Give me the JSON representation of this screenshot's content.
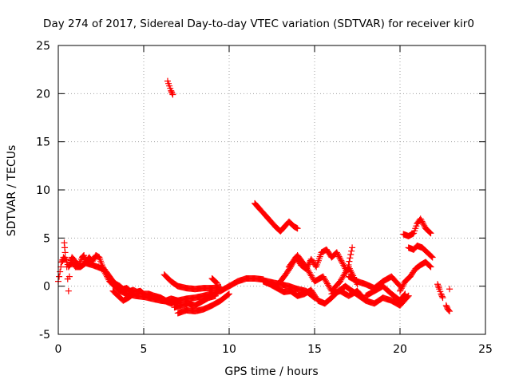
{
  "chart_data": {
    "type": "scatter",
    "title": "Day 274 of 2017, Sidereal Day-to-day VTEC variation (SDTVAR) for receiver kir0",
    "xlabel": "GPS time / hours",
    "ylabel": "SDTVAR / TECUs",
    "xlim": [
      0,
      25
    ],
    "ylim": [
      -5,
      25
    ],
    "xticks": [
      "0",
      "5",
      "10",
      "15",
      "20",
      "25"
    ],
    "yticks": [
      "-5",
      "0",
      "5",
      "10",
      "15",
      "20",
      "25"
    ],
    "grid": true,
    "marker": "+",
    "series": [
      {
        "name": "SDTVAR",
        "color": "#ff0000",
        "segments": [
          {
            "x": [
              0.0,
              0.1,
              0.2,
              0.3,
              0.35,
              0.4,
              0.5,
              0.6,
              0.7,
              0.8,
              0.9,
              1.0,
              1.2,
              1.4,
              1.5,
              1.6,
              1.8,
              2.0,
              2.2,
              2.4,
              2.6,
              2.8,
              3.0,
              3.2,
              3.4,
              3.6,
              3.8,
              4.0,
              4.2,
              4.4,
              4.6,
              4.8,
              5.0,
              5.3,
              5.6,
              6.0,
              6.3,
              6.6,
              7.0
            ],
            "y": [
              0.5,
              1.5,
              2.5,
              3.0,
              4.5,
              3.5,
              2.0,
              -0.5,
              2.5,
              3.0,
              2.8,
              2.5,
              2.2,
              3.0,
              3.2,
              2.5,
              3.0,
              2.6,
              3.2,
              3.0,
              2.0,
              1.5,
              1.0,
              0.5,
              0.2,
              0,
              -0.3,
              -0.2,
              -0.5,
              -0.4,
              -0.6,
              -0.5,
              -0.8,
              -0.8,
              -1.0,
              -1.2,
              -1.5,
              -1.3,
              -1.5
            ]
          },
          {
            "x": [
              0.2,
              0.4,
              0.6,
              0.8,
              1.0,
              1.3,
              1.6,
              2.0,
              2.3,
              2.6,
              3.0,
              3.3,
              3.6,
              4.0,
              4.5,
              5.0,
              5.5,
              6.0,
              6.5,
              7.0
            ],
            "y": [
              2.5,
              3.0,
              2.0,
              2.5,
              2.0,
              2.0,
              2.4,
              2.2,
              2.0,
              1.8,
              0.5,
              0,
              -0.5,
              -0.8,
              -1.0,
              -1.1,
              -1.3,
              -1.5,
              -1.6,
              -1.8
            ]
          },
          {
            "x": [
              3.2,
              3.5,
              3.8,
              4.1,
              4.4
            ],
            "y": [
              -0.5,
              -1.0,
              -1.5,
              -1.2,
              -0.8
            ]
          },
          {
            "x": [
              6.4,
              6.5,
              6.6,
              6.7
            ],
            "y": [
              21.3,
              20.8,
              20.3,
              19.9
            ]
          },
          {
            "x": [
              6.2,
              6.6,
              7.0,
              7.5,
              8.0,
              8.5,
              9.0,
              9.5
            ],
            "y": [
              1.2,
              0.5,
              0,
              -0.2,
              -0.3,
              -0.2,
              -0.2,
              -0.1
            ]
          },
          {
            "x": [
              6.2,
              6.6,
              7.0,
              7.5,
              8.0,
              8.5,
              9.0,
              9.5,
              10.0,
              10.5,
              11.0,
              11.5,
              12.0
            ],
            "y": [
              -1.5,
              -1.8,
              -1.5,
              -1.3,
              -1.2,
              -1.0,
              -0.8,
              -0.5,
              0,
              0.5,
              0.8,
              0.8,
              0.7
            ]
          },
          {
            "x": [
              7.0,
              7.5,
              8.0,
              8.5,
              9.0,
              9.5,
              10.0
            ],
            "y": [
              -2.8,
              -2.5,
              -2.6,
              -2.4,
              -2.0,
              -1.5,
              -0.8
            ]
          },
          {
            "x": [
              6.8,
              7.2,
              7.6,
              8.0,
              8.4,
              8.8,
              9.2
            ],
            "y": [
              -2.2,
              -2.0,
              -1.8,
              -2.0,
              -1.6,
              -1.2,
              -1.0
            ]
          },
          {
            "x": [
              9.0,
              9.3
            ],
            "y": [
              0.8,
              0.3
            ]
          },
          {
            "x": [
              11.5,
              11.8,
              12.1,
              12.4,
              12.7,
              13.0,
              13.3,
              13.5,
              13.8,
              14.0
            ],
            "y": [
              8.6,
              8.0,
              7.4,
              6.8,
              6.2,
              5.7,
              6.3,
              6.7,
              6.2,
              6.0
            ]
          },
          {
            "x": [
              12.0,
              12.5,
              13.0,
              13.5,
              14.0,
              14.5,
              15.0
            ],
            "y": [
              0.6,
              0.4,
              0.2,
              0,
              -0.3,
              -0.5,
              -1.2
            ]
          },
          {
            "x": [
              12.0,
              12.4,
              12.8,
              13.2,
              13.6,
              14.0,
              14.4,
              14.8,
              15.2,
              15.6,
              16.0,
              16.4,
              16.8,
              17.2,
              17.6,
              18.0
            ],
            "y": [
              0.5,
              0.2,
              -0.2,
              -0.6,
              -0.5,
              -1.0,
              -0.8,
              -0.4,
              -1.5,
              -1.8,
              -1.2,
              -0.5,
              0,
              -0.5,
              -1.0,
              -1.5
            ]
          },
          {
            "x": [
              13.0,
              13.3,
              13.6,
              13.9,
              14.2,
              14.5,
              14.8,
              15.1,
              15.4,
              15.7,
              16.0,
              16.3,
              16.6,
              16.9,
              17.2
            ],
            "y": [
              0.5,
              1.2,
              2.0,
              3.0,
              2.2,
              1.8,
              2.8,
              2.0,
              3.5,
              3.8,
              3.0,
              3.5,
              2.5,
              1.5,
              4.0
            ]
          },
          {
            "x": [
              13.5,
              14.0,
              14.5,
              15.0,
              15.5,
              16.0,
              16.5,
              17.0,
              17.5
            ],
            "y": [
              2.0,
              3.2,
              2.0,
              0.5,
              1.0,
              -0.5,
              0.5,
              2.0,
              0.2
            ]
          },
          {
            "x": [
              16.0,
              16.5,
              17.0,
              17.5,
              18.0,
              18.5,
              19.0,
              19.5,
              20.0,
              20.5
            ],
            "y": [
              -0.8,
              -0.5,
              -1.0,
              -0.5,
              -1.5,
              -1.8,
              -1.2,
              -1.5,
              -2.0,
              -1.0
            ]
          },
          {
            "x": [
              17.0,
              17.5,
              18.0,
              18.5,
              19.0,
              19.5,
              20.0
            ],
            "y": [
              1.0,
              0.5,
              0.2,
              -0.2,
              0.5,
              1.0,
              0
            ]
          },
          {
            "x": [
              18.0,
              18.5,
              19.0,
              19.5,
              20.0,
              20.3
            ],
            "y": [
              -1.0,
              -0.5,
              0,
              -0.8,
              -1.5,
              -0.8
            ]
          },
          {
            "x": [
              20.0,
              20.3,
              20.6,
              20.9,
              21.2,
              21.5,
              21.8
            ],
            "y": [
              -0.5,
              0.5,
              1.0,
              1.8,
              2.2,
              2.5,
              2.0
            ]
          },
          {
            "x": [
              20.2,
              20.5,
              20.8,
              21.0,
              21.2,
              21.5,
              21.8
            ],
            "y": [
              5.4,
              5.2,
              5.5,
              6.5,
              7.0,
              6.0,
              5.5
            ]
          },
          {
            "x": [
              20.5,
              20.8,
              21.0,
              21.3,
              21.6,
              21.9
            ],
            "y": [
              4.0,
              3.8,
              4.2,
              4.0,
              3.5,
              3.0
            ]
          },
          {
            "x": [
              22.2,
              22.3,
              22.4,
              22.5
            ],
            "y": [
              0.2,
              -0.3,
              -0.8,
              -1.2
            ]
          },
          {
            "x": [
              22.7,
              22.8,
              22.9
            ],
            "y": [
              -2.0,
              -2.4,
              -2.6
            ]
          },
          {
            "x": [
              22.9
            ],
            "y": [
              -0.3
            ]
          }
        ]
      }
    ]
  }
}
